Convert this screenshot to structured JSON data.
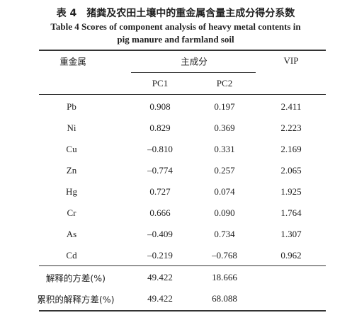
{
  "title": "表 4　猪粪及农田土壤中的重金属含量主成分得分系数",
  "caption": [
    "Table 4    Scores of component analysis of heavy metal contents in",
    "pig manure and farmland soil"
  ],
  "table": {
    "header": [
      "重金属",
      "主成分",
      "VIP"
    ],
    "subheader": [
      "PC1",
      "PC2"
    ],
    "rows": [
      [
        "Pb",
        "0.908",
        "0.197",
        "2.411"
      ],
      [
        "Ni",
        "0.829",
        "0.369",
        "2.223"
      ],
      [
        "Cu",
        "–0.810",
        "0.331",
        "2.169"
      ],
      [
        "Zn",
        "–0.774",
        "0.257",
        "2.065"
      ],
      [
        "Hg",
        "0.727",
        "0.074",
        "1.925"
      ],
      [
        "Cr",
        "0.666",
        "0.090",
        "1.764"
      ],
      [
        "As",
        "–0.409",
        "0.734",
        "1.307"
      ],
      [
        "Cd",
        "–0.219",
        "–0.768",
        "0.962"
      ]
    ],
    "footer": [
      [
        "解释的方差(%)",
        "49.422",
        "18.666"
      ],
      [
        "累积的解释方差(%)",
        "49.422",
        "68.088"
      ]
    ]
  }
}
